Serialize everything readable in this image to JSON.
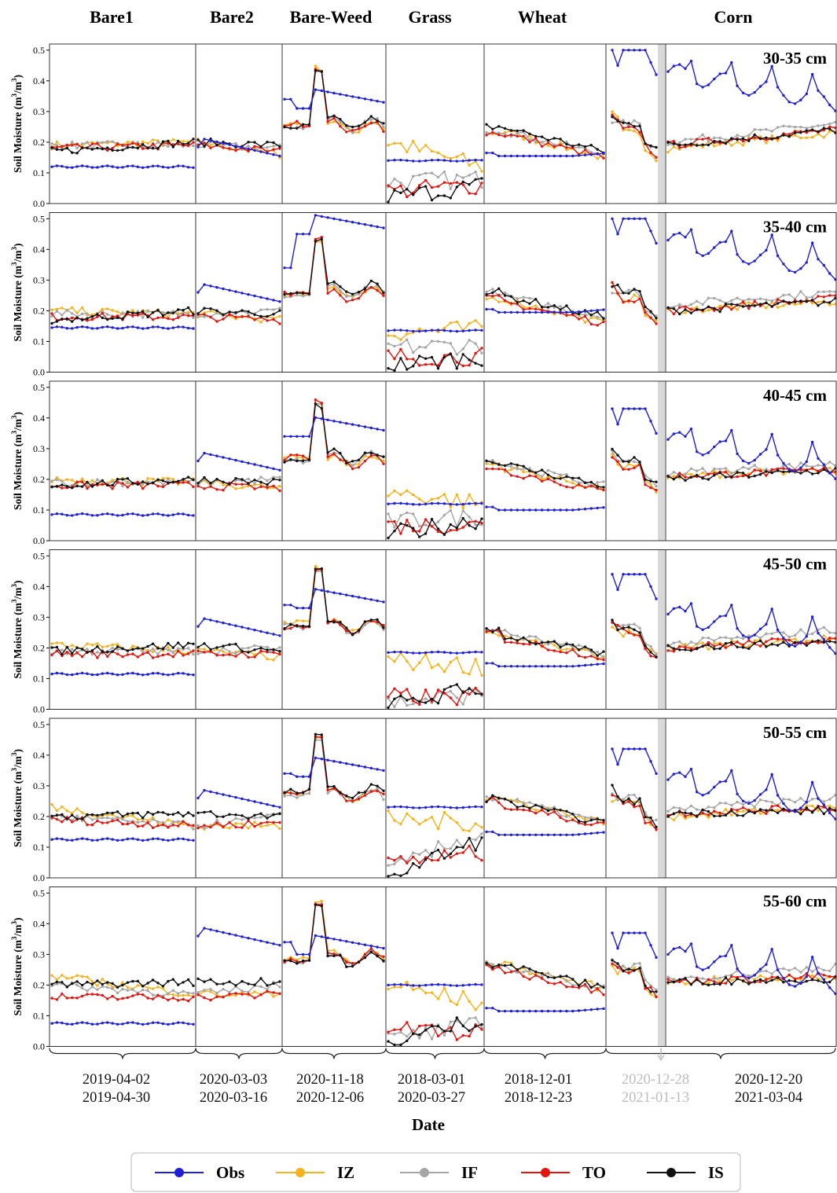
{
  "xlabel": "Date",
  "ylabel": "Soil Moisture (m³/m³)",
  "ylabel_base": "Soil Moisture (m",
  "ylabel_sup": "3",
  "ylabel_mid": "/m",
  "ylabel_sup2": "3",
  "ylabel_end": ")",
  "colors": {
    "Obs": "#1f1fd6",
    "IZ": "#f5b21c",
    "IF": "#a6a6a6",
    "TO": "#e3140f",
    "IS": "#111111",
    "gap": "#d9d9d9"
  },
  "legend": [
    "Obs",
    "IZ",
    "IF",
    "TO",
    "IS"
  ],
  "legend_placement": "bottom-center",
  "chart_data": {
    "type": "line",
    "ylim": [
      0,
      0.52
    ],
    "yticks": [
      "0.0",
      "0.1",
      "0.2",
      "0.3",
      "0.4",
      "0.5"
    ],
    "segments": [
      {
        "name": "Bare1",
        "n": 29,
        "date_lines": [
          "2019-04-02",
          "2019-04-30"
        ],
        "muted": false
      },
      {
        "name": "Bare2",
        "n": 14,
        "date_lines": [
          "2020-03-03",
          "2020-03-16"
        ],
        "muted": false
      },
      {
        "name": "Bare-Weed",
        "n": 17,
        "date_lines": [
          "2020-11-18",
          "2020-12-06"
        ],
        "muted": false
      },
      {
        "name": "Grass",
        "n": 16,
        "date_lines": [
          "2018-03-01",
          "2020-03-27"
        ],
        "muted": false
      },
      {
        "name": "Wheat",
        "n": 20,
        "date_lines": [
          "2018-12-01",
          "2018-12-23"
        ],
        "muted": false
      },
      {
        "name": "",
        "n": 9,
        "date_lines": [
          "2020-12-28",
          "2021-01-13"
        ],
        "muted": true
      },
      {
        "name": "Corn",
        "n": 30,
        "date_lines": [
          "2020-12-20",
          "2021-03-04"
        ],
        "muted": false
      }
    ],
    "depths": [
      {
        "label": "30-35 cm",
        "obs": [
          0.12,
          0.115,
          0.165,
          0.34,
          0.14,
          0.155,
          0.5,
          0.42
        ],
        "ends": {
          "IZ": [
            0.19,
            0.2,
            0.16,
            0.26,
            0.25,
            0.2,
            0.12,
            0.25,
            0.15,
            0.29,
            0.15,
            0.18,
            0.23,
            0.3,
            0.15
          ],
          "IF": [
            0.19,
            0.19,
            0.18,
            0.25,
            0.26,
            0.07,
            0.08,
            0.25,
            0.16,
            0.27,
            0.18,
            0.2,
            0.26,
            0.33,
            0.17
          ],
          "TO": [
            0.18,
            0.19,
            0.17,
            0.26,
            0.25,
            0.04,
            0.06,
            0.24,
            0.15,
            0.28,
            0.16,
            0.19,
            0.24,
            0.31,
            0.13
          ],
          "IS": [
            0.17,
            0.2,
            0.19,
            0.25,
            0.26,
            0.02,
            0.06,
            0.26,
            0.17,
            0.28,
            0.18,
            0.19,
            0.24,
            0.31,
            0.18
          ]
        }
      },
      {
        "label": "35-40 cm",
        "obs": [
          0.145,
          0.145,
          0.24,
          0.48,
          0.135,
          0.195,
          0.5,
          0.42
        ],
        "ends": {
          "IZ": [
            0.2,
            0.19,
            0.17,
            0.25,
            0.26,
            0.13,
            0.14,
            0.25,
            0.16,
            0.28,
            0.16,
            0.2,
            0.23,
            0.29,
            0.15
          ],
          "IF": [
            0.19,
            0.19,
            0.2,
            0.25,
            0.26,
            0.08,
            0.09,
            0.26,
            0.18,
            0.27,
            0.18,
            0.22,
            0.26,
            0.32,
            0.17
          ],
          "TO": [
            0.18,
            0.18,
            0.17,
            0.26,
            0.25,
            0.05,
            0.05,
            0.24,
            0.16,
            0.28,
            0.16,
            0.2,
            0.24,
            0.3,
            0.13
          ],
          "IS": [
            0.17,
            0.2,
            0.19,
            0.25,
            0.27,
            0.02,
            0.05,
            0.26,
            0.18,
            0.29,
            0.18,
            0.2,
            0.23,
            0.3,
            0.18
          ]
        }
      },
      {
        "label": "40-45 cm",
        "obs": [
          0.085,
          0.085,
          0.24,
          0.37,
          0.12,
          0.1,
          0.43,
          0.32
        ],
        "ends": {
          "IZ": [
            0.2,
            0.19,
            0.17,
            0.27,
            0.26,
            0.16,
            0.12,
            0.25,
            0.17,
            0.27,
            0.16,
            0.21,
            0.23,
            0.28,
            0.17
          ],
          "IF": [
            0.19,
            0.19,
            0.2,
            0.26,
            0.27,
            0.06,
            0.08,
            0.26,
            0.18,
            0.28,
            0.18,
            0.22,
            0.25,
            0.3,
            0.18
          ],
          "TO": [
            0.18,
            0.18,
            0.17,
            0.27,
            0.26,
            0.05,
            0.05,
            0.24,
            0.16,
            0.28,
            0.16,
            0.21,
            0.23,
            0.29,
            0.15
          ],
          "IS": [
            0.18,
            0.2,
            0.19,
            0.26,
            0.27,
            0.02,
            0.07,
            0.26,
            0.18,
            0.29,
            0.18,
            0.2,
            0.23,
            0.29,
            0.17
          ]
        }
      },
      {
        "label": "45-50 cm",
        "obs": [
          0.115,
          0.115,
          0.25,
          0.36,
          0.185,
          0.14,
          0.44,
          0.3
        ],
        "ends": {
          "IZ": [
            0.21,
            0.19,
            0.17,
            0.28,
            0.27,
            0.16,
            0.14,
            0.25,
            0.17,
            0.27,
            0.17,
            0.2,
            0.23,
            0.28,
            0.17
          ],
          "IF": [
            0.19,
            0.19,
            0.2,
            0.27,
            0.27,
            0.02,
            0.05,
            0.26,
            0.18,
            0.28,
            0.19,
            0.21,
            0.26,
            0.3,
            0.18
          ],
          "TO": [
            0.18,
            0.18,
            0.18,
            0.27,
            0.27,
            0.04,
            0.04,
            0.24,
            0.17,
            0.28,
            0.17,
            0.2,
            0.23,
            0.29,
            0.15
          ],
          "IS": [
            0.19,
            0.21,
            0.19,
            0.27,
            0.27,
            0.01,
            0.07,
            0.25,
            0.18,
            0.28,
            0.18,
            0.2,
            0.22,
            0.29,
            0.17
          ]
        }
      },
      {
        "label": "50-55 cm",
        "obs": [
          0.125,
          0.125,
          0.24,
          0.36,
          0.23,
          0.14,
          0.42,
          0.31
        ],
        "ends": {
          "IZ": [
            0.23,
            0.17,
            0.17,
            0.28,
            0.27,
            0.19,
            0.18,
            0.27,
            0.18,
            0.26,
            0.17,
            0.2,
            0.23,
            0.28,
            0.18
          ],
          "IF": [
            0.2,
            0.17,
            0.2,
            0.27,
            0.27,
            0.02,
            0.15,
            0.27,
            0.18,
            0.27,
            0.18,
            0.22,
            0.26,
            0.3,
            0.18
          ],
          "TO": [
            0.19,
            0.17,
            0.18,
            0.28,
            0.27,
            0.05,
            0.08,
            0.25,
            0.17,
            0.28,
            0.16,
            0.21,
            0.23,
            0.29,
            0.16
          ],
          "IS": [
            0.2,
            0.21,
            0.2,
            0.28,
            0.28,
            0.01,
            0.12,
            0.26,
            0.18,
            0.29,
            0.17,
            0.21,
            0.22,
            0.28,
            0.18
          ]
        }
      },
      {
        "label": "55-60 cm",
        "obs": [
          0.075,
          0.08,
          0.34,
          0.33,
          0.2,
          0.115,
          0.37,
          0.29
        ],
        "ends": {
          "IZ": [
            0.23,
            0.17,
            0.17,
            0.29,
            0.29,
            0.2,
            0.14,
            0.28,
            0.19,
            0.26,
            0.17,
            0.21,
            0.23,
            0.28,
            0.18
          ],
          "IF": [
            0.2,
            0.17,
            0.2,
            0.28,
            0.29,
            0.02,
            0.07,
            0.27,
            0.19,
            0.28,
            0.18,
            0.22,
            0.26,
            0.3,
            0.18
          ],
          "TO": [
            0.16,
            0.16,
            0.17,
            0.28,
            0.29,
            0.06,
            0.04,
            0.26,
            0.18,
            0.28,
            0.17,
            0.21,
            0.23,
            0.28,
            0.17
          ],
          "IS": [
            0.2,
            0.21,
            0.21,
            0.28,
            0.28,
            0.01,
            0.09,
            0.28,
            0.19,
            0.29,
            0.17,
            0.21,
            0.22,
            0.28,
            0.18
          ]
        }
      }
    ]
  }
}
